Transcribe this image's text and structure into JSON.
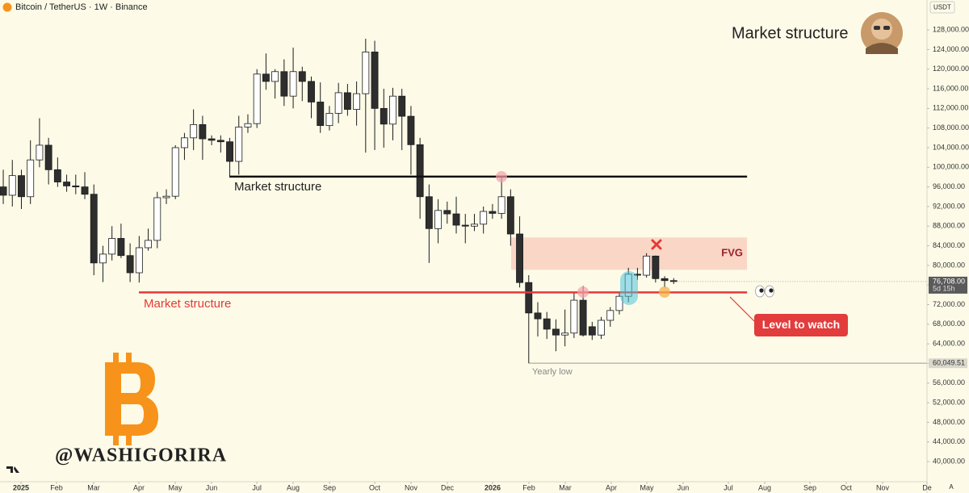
{
  "header": {
    "symbol_title": "Bitcoin / TetherUS · 1W · Binance",
    "currency": "USDT",
    "scale_mode": "A"
  },
  "watermark": "@WASHIGORIRA",
  "chart_data": {
    "type": "candlestick",
    "title": "Market structure",
    "up_color": "#ffffff",
    "down_color": "#2e2e2e",
    "border_color": "#1c1c1c",
    "x": [
      0,
      1,
      2,
      3,
      4,
      5,
      6,
      7,
      8,
      9,
      10,
      11,
      12,
      13,
      14,
      15,
      16,
      17,
      18,
      19,
      20,
      21,
      22,
      23,
      24,
      25,
      26,
      27,
      28,
      29,
      30,
      31,
      32,
      33,
      34,
      35,
      36,
      37,
      38,
      39,
      40,
      41,
      42,
      43,
      44,
      45,
      46,
      47,
      48,
      49,
      50,
      51,
      52,
      53,
      54,
      55,
      56,
      57,
      58,
      59,
      60,
      61,
      62,
      63,
      64,
      65,
      66,
      67,
      68,
      69,
      70,
      71,
      72,
      73,
      74
    ],
    "open": [
      96000,
      94300,
      98300,
      94000,
      101500,
      104500,
      99500,
      97000,
      96200,
      96000,
      94500,
      80500,
      82300,
      85500,
      82000,
      78500,
      83600,
      85100,
      93800,
      94100,
      104000,
      106000,
      108700,
      105800,
      105500,
      105200,
      101200,
      108200,
      108900,
      119000,
      117500,
      119500,
      114500,
      119500,
      117500,
      113300,
      108500,
      111000,
      115200,
      111800,
      115000,
      123500,
      112000,
      108800,
      114500,
      110400,
      104600,
      94000,
      87500,
      91200,
      90500,
      88200,
      88000,
      88400,
      91000,
      90600,
      94000,
      86400,
      76500,
      70300,
      69100,
      67000,
      65800,
      66200,
      72900,
      67500,
      65800,
      68800,
      70800,
      73700,
      78200,
      78000,
      81900,
      77300,
      76900
    ],
    "high": [
      99500,
      101500,
      99500,
      105500,
      110000,
      106000,
      102000,
      98500,
      98500,
      99000,
      96500,
      84000,
      88000,
      88500,
      84500,
      86000,
      87500,
      95000,
      95500,
      104500,
      107000,
      111800,
      110500,
      106500,
      106500,
      106000,
      110500,
      110800,
      120000,
      123200,
      120000,
      122000,
      124400,
      120500,
      118500,
      117300,
      112500,
      117200,
      117000,
      117500,
      126200,
      125800,
      116000,
      116200,
      116000,
      112500,
      106000,
      96500,
      93500,
      93000,
      94000,
      90500,
      90500,
      92000,
      92500,
      97900,
      95500,
      90000,
      78000,
      72500,
      70500,
      69000,
      71000,
      74500,
      75800,
      68500,
      69500,
      71500,
      74500,
      79500,
      79500,
      82500,
      82000,
      77800,
      77400
    ],
    "low": [
      92500,
      92000,
      91500,
      92500,
      100000,
      96500,
      96000,
      95000,
      94500,
      93500,
      78000,
      76600,
      81000,
      81500,
      76600,
      76500,
      83000,
      83500,
      92500,
      93500,
      101500,
      103500,
      101500,
      104500,
      103000,
      98200,
      98500,
      107000,
      108000,
      115800,
      114000,
      112500,
      112000,
      113500,
      110000,
      107000,
      107500,
      109000,
      110500,
      108500,
      103000,
      103500,
      104000,
      105500,
      103500,
      98500,
      89500,
      80500,
      84500,
      88500,
      86500,
      84500,
      87000,
      86500,
      89500,
      89500,
      84000,
      75500,
      60049.51,
      65500,
      65000,
      62500,
      63500,
      65200,
      65500,
      64800,
      65000,
      67500,
      70000,
      72500,
      77000,
      77500,
      76500,
      75500,
      76200
    ],
    "close": [
      94300,
      98300,
      94000,
      101500,
      104500,
      99500,
      97000,
      96200,
      96000,
      94500,
      80500,
      82300,
      85500,
      82000,
      78500,
      83600,
      85100,
      93800,
      94100,
      104000,
      106000,
      108700,
      105800,
      105500,
      105200,
      101200,
      108200,
      108900,
      119000,
      117500,
      119500,
      114500,
      119500,
      117500,
      113300,
      108500,
      111000,
      115200,
      111800,
      115000,
      123500,
      112000,
      108800,
      114500,
      110400,
      104600,
      94000,
      87500,
      91200,
      90500,
      88200,
      88000,
      88400,
      91000,
      90600,
      94000,
      86400,
      76500,
      70300,
      69100,
      67000,
      65800,
      66200,
      72900,
      65800,
      65800,
      68800,
      70800,
      73700,
      78200,
      78000,
      81900,
      77300,
      76900,
      76708
    ],
    "xlim": [
      -0.36,
      101.96
    ],
    "xticks": [
      {
        "value": 1.96,
        "label": "2025"
      },
      {
        "value": 5.88,
        "label": "Feb"
      },
      {
        "value": 9.98,
        "label": "Mar"
      },
      {
        "value": 14.97,
        "label": "Apr"
      },
      {
        "value": 18.98,
        "label": "May"
      },
      {
        "value": 22.99,
        "label": "Jun"
      },
      {
        "value": 27.99,
        "label": "Jul"
      },
      {
        "value": 31.99,
        "label": "Aug"
      },
      {
        "value": 36.01,
        "label": "Sep"
      },
      {
        "value": 41.0,
        "label": "Oct"
      },
      {
        "value": 45.01,
        "label": "Nov"
      },
      {
        "value": 49.02,
        "label": "Dec"
      },
      {
        "value": 54.01,
        "label": "2026"
      },
      {
        "value": 58.02,
        "label": "Feb"
      },
      {
        "value": 62.03,
        "label": "Mar"
      },
      {
        "value": 67.11,
        "label": "Apr"
      },
      {
        "value": 71.03,
        "label": "May"
      },
      {
        "value": 75.04,
        "label": "Jun"
      },
      {
        "value": 80.04,
        "label": "Jul"
      },
      {
        "value": 84.05,
        "label": "Aug"
      },
      {
        "value": 89.04,
        "label": "Sep"
      },
      {
        "value": 93.05,
        "label": "Oct"
      },
      {
        "value": 97.06,
        "label": "Nov"
      },
      {
        "value": 101.96,
        "label": "De"
      }
    ],
    "ylim": [
      35900,
      134100
    ],
    "yticks": [
      {
        "value": 40000,
        "label": "40,000.00"
      },
      {
        "value": 44000,
        "label": "44,000.00"
      },
      {
        "value": 48000,
        "label": "48,000.00"
      },
      {
        "value": 52000,
        "label": "52,000.00"
      },
      {
        "value": 56000,
        "label": "56,000.00"
      },
      {
        "value": 60000,
        "label": "60,000.00"
      },
      {
        "value": 64000,
        "label": "64,000.00"
      },
      {
        "value": 68000,
        "label": "68,000.00"
      },
      {
        "value": 72000,
        "label": "72,000.00"
      },
      {
        "value": 76000,
        "label": "76,000.00"
      },
      {
        "value": 80000,
        "label": "80,000.00"
      },
      {
        "value": 84000,
        "label": "84,000.00"
      },
      {
        "value": 88000,
        "label": "88,000.00"
      },
      {
        "value": 92000,
        "label": "92,000.00"
      },
      {
        "value": 96000,
        "label": "96,000.00"
      },
      {
        "value": 100000,
        "label": "100,000.00"
      },
      {
        "value": 104000,
        "label": "104,000.00"
      },
      {
        "value": 108000,
        "label": "108,000.00"
      },
      {
        "value": 112000,
        "label": "112,000.00"
      },
      {
        "value": 116000,
        "label": "116,000.00"
      },
      {
        "value": 120000,
        "label": "120,000.00"
      },
      {
        "value": 124000,
        "label": "124,000.00"
      },
      {
        "value": 128000,
        "label": "128,000.00"
      }
    ],
    "grid": false,
    "last_price": {
      "value": 76708,
      "label": "76,708.00",
      "countdown": "5d 15h"
    },
    "levels": [
      {
        "label": "Market structure",
        "value": 98100,
        "from": 24.96,
        "to": 82.1,
        "color": "#111111"
      },
      {
        "label": "Market structure",
        "value": 74500,
        "from": 14.97,
        "to": 82.1,
        "color": "#e53935"
      }
    ],
    "fvg": {
      "label": "FVG",
      "top": 85700,
      "bottom": 79100,
      "from": 56.06,
      "to": 82.09,
      "color": "#f4a99e"
    },
    "yearly_low": {
      "label": "Yearly low",
      "value": 60049.51,
      "value_label": "60,049.51",
      "from": 58
    },
    "callout": "Level to watch"
  }
}
